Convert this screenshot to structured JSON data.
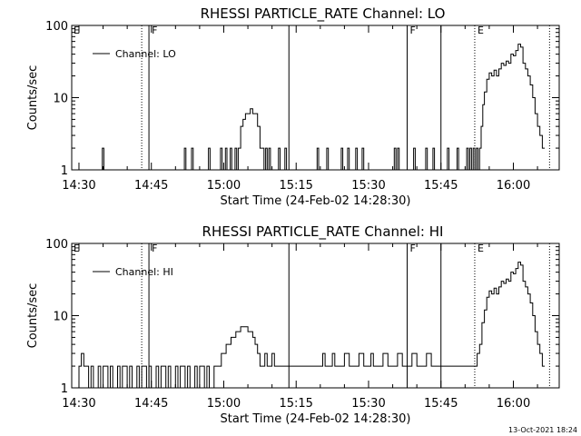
{
  "chart_data": [
    {
      "type": "line",
      "title": "RHESSI PARTICLE_RATE Channel: LO",
      "xlabel": "Start Time (24-Feb-02 14:28:30)",
      "ylabel": "Counts/sec",
      "y_scale": "log",
      "ylim": [
        1,
        100
      ],
      "xlim": [
        "14:28:30",
        "16:09:30"
      ],
      "x_ticks": [
        "14:30",
        "14:45",
        "15:00",
        "15:15",
        "15:30",
        "15:45",
        "16:00"
      ],
      "y_ticks": [
        "1",
        "10",
        "100"
      ],
      "legend": {
        "position": "top-left",
        "entries": [
          "Channel: LO"
        ]
      },
      "vertical_markers": [
        {
          "time": "14:43:00",
          "style": "dotted",
          "label": ""
        },
        {
          "time": "14:44:30",
          "style": "solid",
          "label": "F"
        },
        {
          "time": "15:13:30",
          "style": "solid",
          "label": ""
        },
        {
          "time": "15:38:00",
          "style": "solid",
          "label": "F"
        },
        {
          "time": "15:45:00",
          "style": "solid",
          "label": ""
        },
        {
          "time": "15:52:00",
          "style": "dotted",
          "label": "E"
        },
        {
          "time": "16:07:30",
          "style": "dotted",
          "label": ""
        }
      ],
      "edge_labels": [
        "E"
      ],
      "series": [
        {
          "name": "Channel: LO",
          "x": [
            "14:28:30",
            "14:34:30",
            "14:34:50",
            "14:35:10",
            "14:51:30",
            "14:51:50",
            "14:52:10",
            "14:53:00",
            "14:53:20",
            "14:53:40",
            "14:56:30",
            "14:56:50",
            "14:57:10",
            "14:59:00",
            "14:59:20",
            "14:59:40",
            "15:00:00",
            "15:00:20",
            "15:00:40",
            "15:01:00",
            "15:01:20",
            "15:01:40",
            "15:02:00",
            "15:02:20",
            "15:02:40",
            "15:03:00",
            "15:03:30",
            "15:04:00",
            "15:04:30",
            "15:05:00",
            "15:05:30",
            "15:06:00",
            "15:06:30",
            "15:07:00",
            "15:07:30",
            "15:08:00",
            "15:08:20",
            "15:08:40",
            "15:09:00",
            "15:09:20",
            "15:09:40",
            "15:11:00",
            "15:11:20",
            "15:11:40",
            "15:12:40",
            "15:13:00",
            "15:13:20",
            "15:19:00",
            "15:19:20",
            "15:19:40",
            "15:21:00",
            "15:21:20",
            "15:21:40",
            "15:24:00",
            "15:24:20",
            "15:24:40",
            "15:25:20",
            "15:25:40",
            "15:26:00",
            "15:27:00",
            "15:27:20",
            "15:27:40",
            "15:28:20",
            "15:28:40",
            "15:29:00",
            "15:35:00",
            "15:35:20",
            "15:35:40",
            "15:36:00",
            "15:36:20",
            "15:36:40",
            "15:39:00",
            "15:39:20",
            "15:39:40",
            "15:41:30",
            "15:41:50",
            "15:42:10",
            "15:43:00",
            "15:43:20",
            "15:43:40",
            "15:46:00",
            "15:46:20",
            "15:46:40",
            "15:48:00",
            "15:48:20",
            "15:48:40",
            "15:50:00",
            "15:50:20",
            "15:50:40",
            "15:51:00",
            "15:51:20",
            "15:51:40",
            "15:52:00",
            "15:52:20",
            "15:52:40",
            "15:53:00",
            "15:53:20",
            "15:53:40",
            "15:54:00",
            "15:54:30",
            "15:55:00",
            "15:55:30",
            "15:56:00",
            "15:56:30",
            "15:57:00",
            "15:57:30",
            "15:58:00",
            "15:58:30",
            "15:59:00",
            "15:59:30",
            "16:00:00",
            "16:00:30",
            "16:01:00",
            "16:01:30",
            "16:02:00",
            "16:02:30",
            "16:03:00",
            "16:03:30",
            "16:04:00",
            "16:04:30",
            "16:05:00",
            "16:05:30",
            "16:06:00",
            "16:06:30"
          ],
          "values": [
            1,
            1,
            2,
            1,
            1,
            2,
            1,
            1,
            2,
            1,
            1,
            2,
            1,
            1,
            2,
            1,
            1,
            2,
            1,
            1,
            2,
            1,
            1,
            2,
            1,
            2,
            4,
            5,
            6,
            6,
            7,
            6,
            6,
            4,
            2,
            2,
            1,
            2,
            1,
            2,
            1,
            1,
            2,
            1,
            2,
            1,
            1,
            1,
            2,
            1,
            1,
            2,
            1,
            1,
            2,
            1,
            1,
            2,
            1,
            1,
            2,
            1,
            1,
            2,
            1,
            1,
            2,
            1,
            2,
            1,
            1,
            1,
            2,
            1,
            1,
            2,
            1,
            1,
            2,
            1,
            1,
            2,
            1,
            1,
            2,
            1,
            1,
            2,
            1,
            2,
            1,
            2,
            1,
            2,
            1,
            2,
            4,
            8,
            12,
            18,
            22,
            20,
            24,
            20,
            25,
            30,
            28,
            32,
            30,
            40,
            38,
            45,
            55,
            50,
            30,
            25,
            20,
            15,
            10,
            6,
            4,
            3,
            2,
            2
          ]
        }
      ]
    },
    {
      "type": "line",
      "title": "RHESSI PARTICLE_RATE Channel: HI",
      "xlabel": "Start Time (24-Feb-02 14:28:30)",
      "ylabel": "Counts/sec",
      "y_scale": "log",
      "ylim": [
        1,
        100
      ],
      "xlim": [
        "14:28:30",
        "16:09:30"
      ],
      "x_ticks": [
        "14:30",
        "14:45",
        "15:00",
        "15:15",
        "15:30",
        "15:45",
        "16:00"
      ],
      "y_ticks": [
        "1",
        "10",
        "100"
      ],
      "legend": {
        "position": "top-left",
        "entries": [
          "Channel: HI"
        ]
      },
      "vertical_markers": [
        {
          "time": "14:43:00",
          "style": "dotted",
          "label": ""
        },
        {
          "time": "14:44:30",
          "style": "solid",
          "label": "F"
        },
        {
          "time": "15:13:30",
          "style": "solid",
          "label": ""
        },
        {
          "time": "15:38:00",
          "style": "solid",
          "label": "F"
        },
        {
          "time": "15:45:00",
          "style": "solid",
          "label": ""
        },
        {
          "time": "15:52:00",
          "style": "dotted",
          "label": "E"
        },
        {
          "time": "16:07:30",
          "style": "dotted",
          "label": ""
        }
      ],
      "edge_labels": [
        "E"
      ],
      "series": [
        {
          "name": "Channel: HI",
          "x": [
            "14:28:30",
            "14:30:00",
            "14:30:30",
            "14:31:00",
            "14:32:00",
            "14:32:30",
            "14:33:00",
            "14:34:00",
            "14:34:30",
            "14:35:00",
            "14:36:00",
            "14:36:30",
            "14:37:00",
            "14:38:00",
            "14:38:30",
            "14:39:00",
            "14:40:00",
            "14:40:30",
            "14:41:00",
            "14:42:00",
            "14:42:30",
            "14:43:00",
            "14:44:00",
            "14:44:30",
            "14:45:00",
            "14:46:00",
            "14:46:30",
            "14:47:00",
            "14:48:00",
            "14:48:30",
            "14:49:00",
            "14:50:00",
            "14:50:30",
            "14:51:00",
            "14:52:00",
            "14:52:30",
            "14:53:00",
            "14:54:00",
            "14:54:30",
            "14:55:00",
            "14:56:00",
            "14:56:30",
            "14:57:00",
            "14:58:00",
            "14:58:30",
            "14:59:00",
            "14:59:30",
            "15:00:00",
            "15:00:30",
            "15:01:00",
            "15:01:30",
            "15:02:00",
            "15:02:30",
            "15:03:00",
            "15:03:30",
            "15:04:00",
            "15:04:30",
            "15:05:00",
            "15:05:30",
            "15:06:00",
            "15:06:30",
            "15:07:00",
            "15:07:30",
            "15:08:00",
            "15:08:30",
            "15:09:00",
            "15:09:30",
            "15:10:00",
            "15:10:30",
            "15:11:00",
            "15:12:00",
            "15:13:00",
            "15:14:00",
            "15:15:00",
            "15:16:00",
            "15:17:00",
            "15:18:00",
            "15:19:00",
            "15:20:00",
            "15:20:30",
            "15:21:00",
            "15:22:00",
            "15:22:30",
            "15:23:00",
            "15:24:00",
            "15:25:00",
            "15:26:00",
            "15:27:00",
            "15:28:00",
            "15:29:00",
            "15:30:00",
            "15:30:30",
            "15:31:00",
            "15:32:00",
            "15:33:00",
            "15:34:00",
            "15:35:00",
            "15:36:00",
            "15:37:00",
            "15:38:00",
            "15:39:00",
            "15:40:00",
            "15:41:00",
            "15:42:00",
            "15:43:00",
            "15:44:00",
            "15:45:00",
            "15:46:00",
            "15:47:00",
            "15:48:00",
            "15:49:00",
            "15:50:00",
            "15:51:00",
            "15:52:00",
            "15:52:30",
            "15:53:00",
            "15:53:30",
            "15:54:00",
            "15:54:30",
            "15:55:00",
            "15:55:30",
            "15:56:00",
            "15:56:30",
            "15:57:00",
            "15:57:30",
            "15:58:00",
            "15:58:30",
            "15:59:00",
            "15:59:30",
            "16:00:00",
            "16:00:30",
            "16:01:00",
            "16:01:30",
            "16:02:00",
            "16:02:30",
            "16:03:00",
            "16:03:30",
            "16:04:00",
            "16:04:30",
            "16:05:00",
            "16:05:30",
            "16:06:00",
            "16:06:30"
          ],
          "values": [
            1,
            2,
            3,
            2,
            1,
            2,
            1,
            2,
            1,
            2,
            1,
            2,
            1,
            2,
            1,
            2,
            1,
            2,
            1,
            2,
            1,
            2,
            1,
            2,
            1,
            2,
            1,
            2,
            1,
            2,
            1,
            2,
            1,
            2,
            1,
            2,
            1,
            2,
            1,
            2,
            1,
            2,
            1,
            2,
            2,
            2,
            3,
            3,
            4,
            4,
            5,
            5,
            6,
            6,
            7,
            7,
            7,
            6,
            6,
            5,
            4,
            3,
            2,
            2,
            3,
            2,
            2,
            3,
            2,
            2,
            2,
            2,
            2,
            2,
            2,
            2,
            2,
            2,
            2,
            3,
            2,
            2,
            3,
            2,
            2,
            3,
            2,
            2,
            3,
            2,
            2,
            3,
            2,
            2,
            3,
            2,
            2,
            3,
            2,
            2,
            3,
            2,
            2,
            3,
            2,
            2,
            2,
            2,
            2,
            2,
            2,
            2,
            2,
            2,
            3,
            4,
            8,
            12,
            18,
            22,
            20,
            24,
            20,
            25,
            30,
            28,
            32,
            30,
            40,
            38,
            45,
            55,
            50,
            30,
            25,
            20,
            15,
            10,
            6,
            4,
            3,
            2,
            2
          ]
        }
      ]
    }
  ],
  "footer": {
    "stamp": "13-Oct-2021 18:24"
  }
}
